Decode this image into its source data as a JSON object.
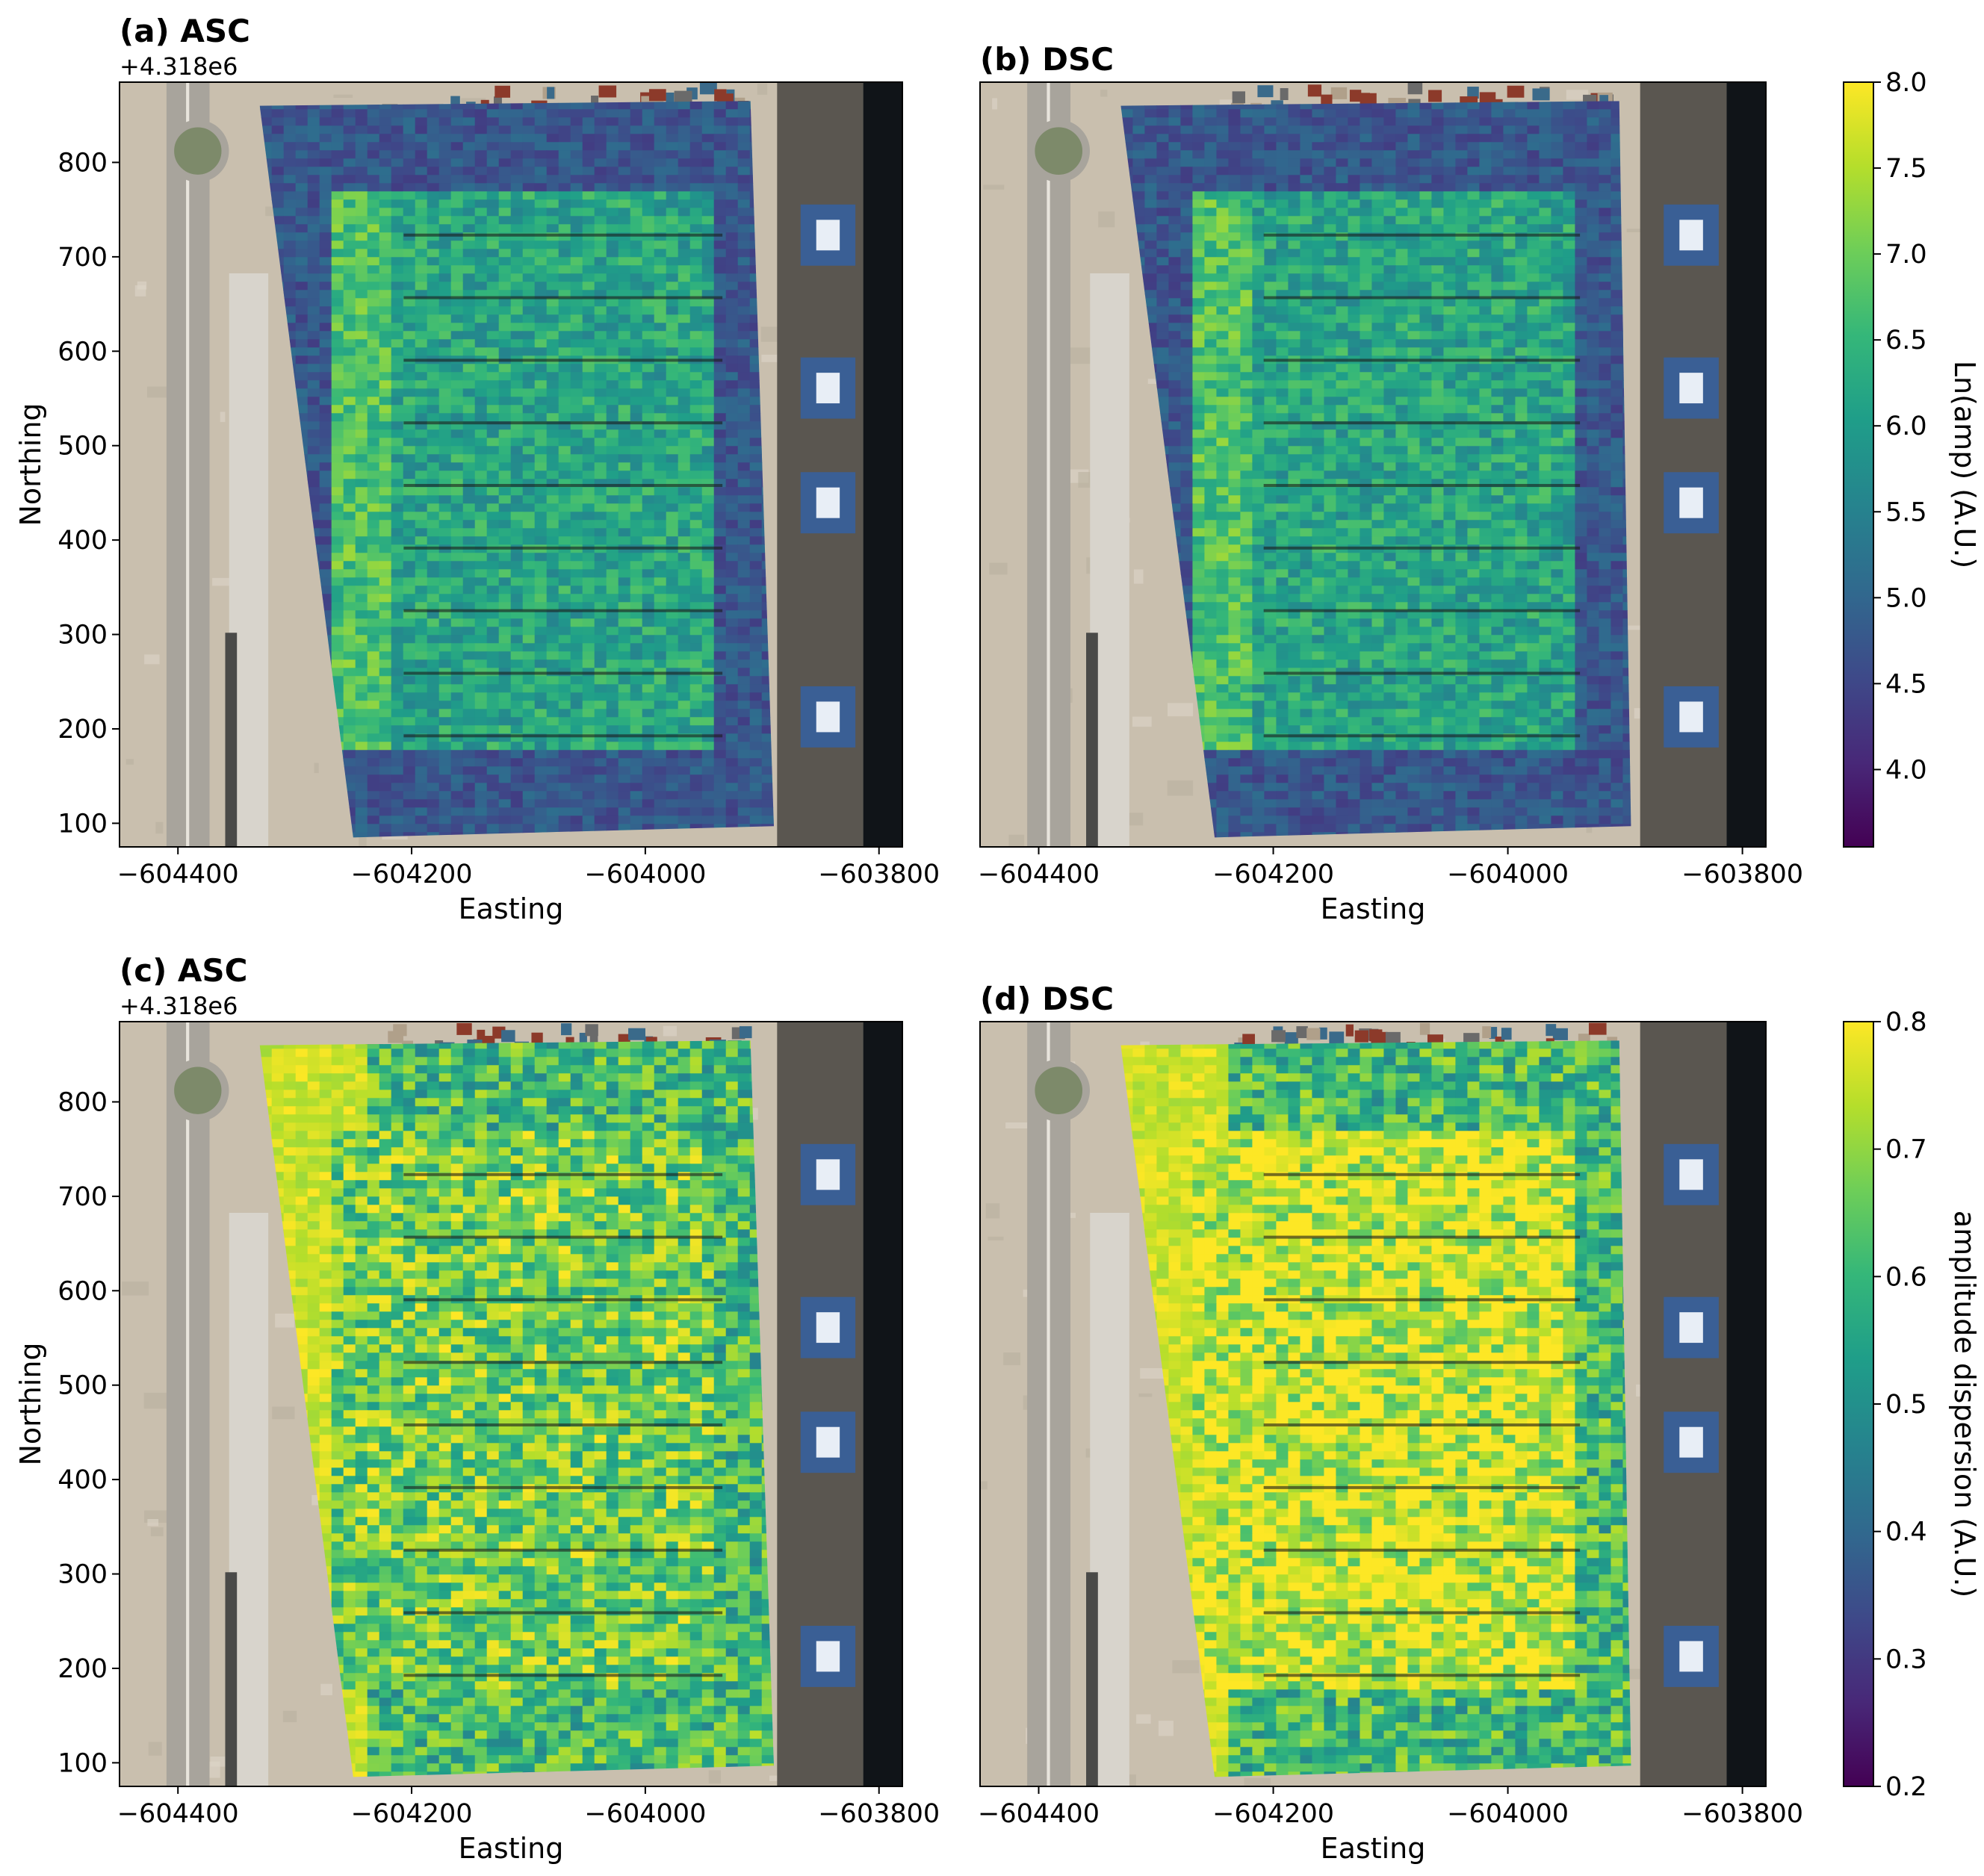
{
  "chart_data": [
    {
      "type": "heatmap",
      "title": "(a) ASC",
      "x_offset_label": "+4.318e6",
      "xlabel": "Easting",
      "ylabel": "Northing",
      "xlim": [
        -604450,
        -603780
      ],
      "ylim": [
        75,
        885
      ],
      "xticks": [
        "−604400",
        "−604200",
        "−604000",
        "−603800"
      ],
      "yticks": [
        "100",
        "200",
        "300",
        "400",
        "500",
        "600",
        "700",
        "800"
      ],
      "x_tick_values": [
        -604400,
        -604200,
        -604000,
        -603800
      ],
      "y_tick_values": [
        100,
        200,
        300,
        400,
        500,
        600,
        700,
        800
      ],
      "colorbar": "amplitude",
      "footprint": [
        [
          -604330,
          860
        ],
        [
          -603910,
          865
        ],
        [
          -603890,
          97
        ],
        [
          -604250,
          85
        ]
      ]
    },
    {
      "type": "heatmap",
      "title": "(b) DSC",
      "xlabel": "Easting",
      "xlim": [
        -604450,
        -603780
      ],
      "ylim": [
        75,
        885
      ],
      "xticks": [
        "−604400",
        "−604200",
        "−604000",
        "−603800"
      ],
      "x_tick_values": [
        -604400,
        -604200,
        -604000,
        -603800
      ],
      "colorbar": "amplitude",
      "footprint": [
        [
          -604330,
          860
        ],
        [
          -603905,
          865
        ],
        [
          -603895,
          97
        ],
        [
          -604250,
          85
        ]
      ]
    },
    {
      "type": "heatmap",
      "title": "(c) ASC",
      "x_offset_label": "+4.318e6",
      "xlabel": "Easting",
      "ylabel": "Northing",
      "xlim": [
        -604450,
        -603780
      ],
      "ylim": [
        75,
        885
      ],
      "xticks": [
        "−604400",
        "−604200",
        "−604000",
        "−603800"
      ],
      "yticks": [
        "100",
        "200",
        "300",
        "400",
        "500",
        "600",
        "700",
        "800"
      ],
      "x_tick_values": [
        -604400,
        -604200,
        -604000,
        -603800
      ],
      "y_tick_values": [
        100,
        200,
        300,
        400,
        500,
        600,
        700,
        800
      ],
      "colorbar": "dispersion",
      "footprint": [
        [
          -604330,
          860
        ],
        [
          -603910,
          865
        ],
        [
          -603890,
          97
        ],
        [
          -604250,
          85
        ]
      ]
    },
    {
      "type": "heatmap",
      "title": "(d) DSC",
      "xlabel": "Easting",
      "xlim": [
        -604450,
        -603780
      ],
      "ylim": [
        75,
        885
      ],
      "xticks": [
        "−604400",
        "−604200",
        "−604000",
        "−603800"
      ],
      "x_tick_values": [
        -604400,
        -604200,
        -604000,
        -603800
      ],
      "colorbar": "dispersion",
      "footprint": [
        [
          -604330,
          860
        ],
        [
          -603905,
          865
        ],
        [
          -603895,
          97
        ],
        [
          -604250,
          85
        ]
      ]
    }
  ],
  "colorbars": {
    "amplitude": {
      "label": "Ln(amp) (A.U.)",
      "range": [
        3.55,
        8.0
      ],
      "ticks": [
        "4.0",
        "4.5",
        "5.0",
        "5.5",
        "6.0",
        "6.5",
        "7.0",
        "7.5",
        "8.0"
      ],
      "tick_values": [
        4.0,
        4.5,
        5.0,
        5.5,
        6.0,
        6.5,
        7.0,
        7.5,
        8.0
      ],
      "colormap": "viridis"
    },
    "dispersion": {
      "label": "amplitude dispersion (A.U.)",
      "range": [
        0.2,
        0.8
      ],
      "ticks": [
        "0.2",
        "0.3",
        "0.4",
        "0.5",
        "0.6",
        "0.7",
        "0.8"
      ],
      "tick_values": [
        0.2,
        0.3,
        0.4,
        0.5,
        0.6,
        0.7,
        0.8
      ],
      "colormap": "viridis"
    }
  },
  "colors": {
    "viridis": [
      "#440154",
      "#482878",
      "#3e4989",
      "#31688e",
      "#26828e",
      "#1f9e89",
      "#35b779",
      "#6ece58",
      "#b5de2b",
      "#fde725"
    ],
    "sand": "#c9bfae",
    "road": "#a8a49c",
    "water": "#101418",
    "crane": "#3a5f95"
  }
}
